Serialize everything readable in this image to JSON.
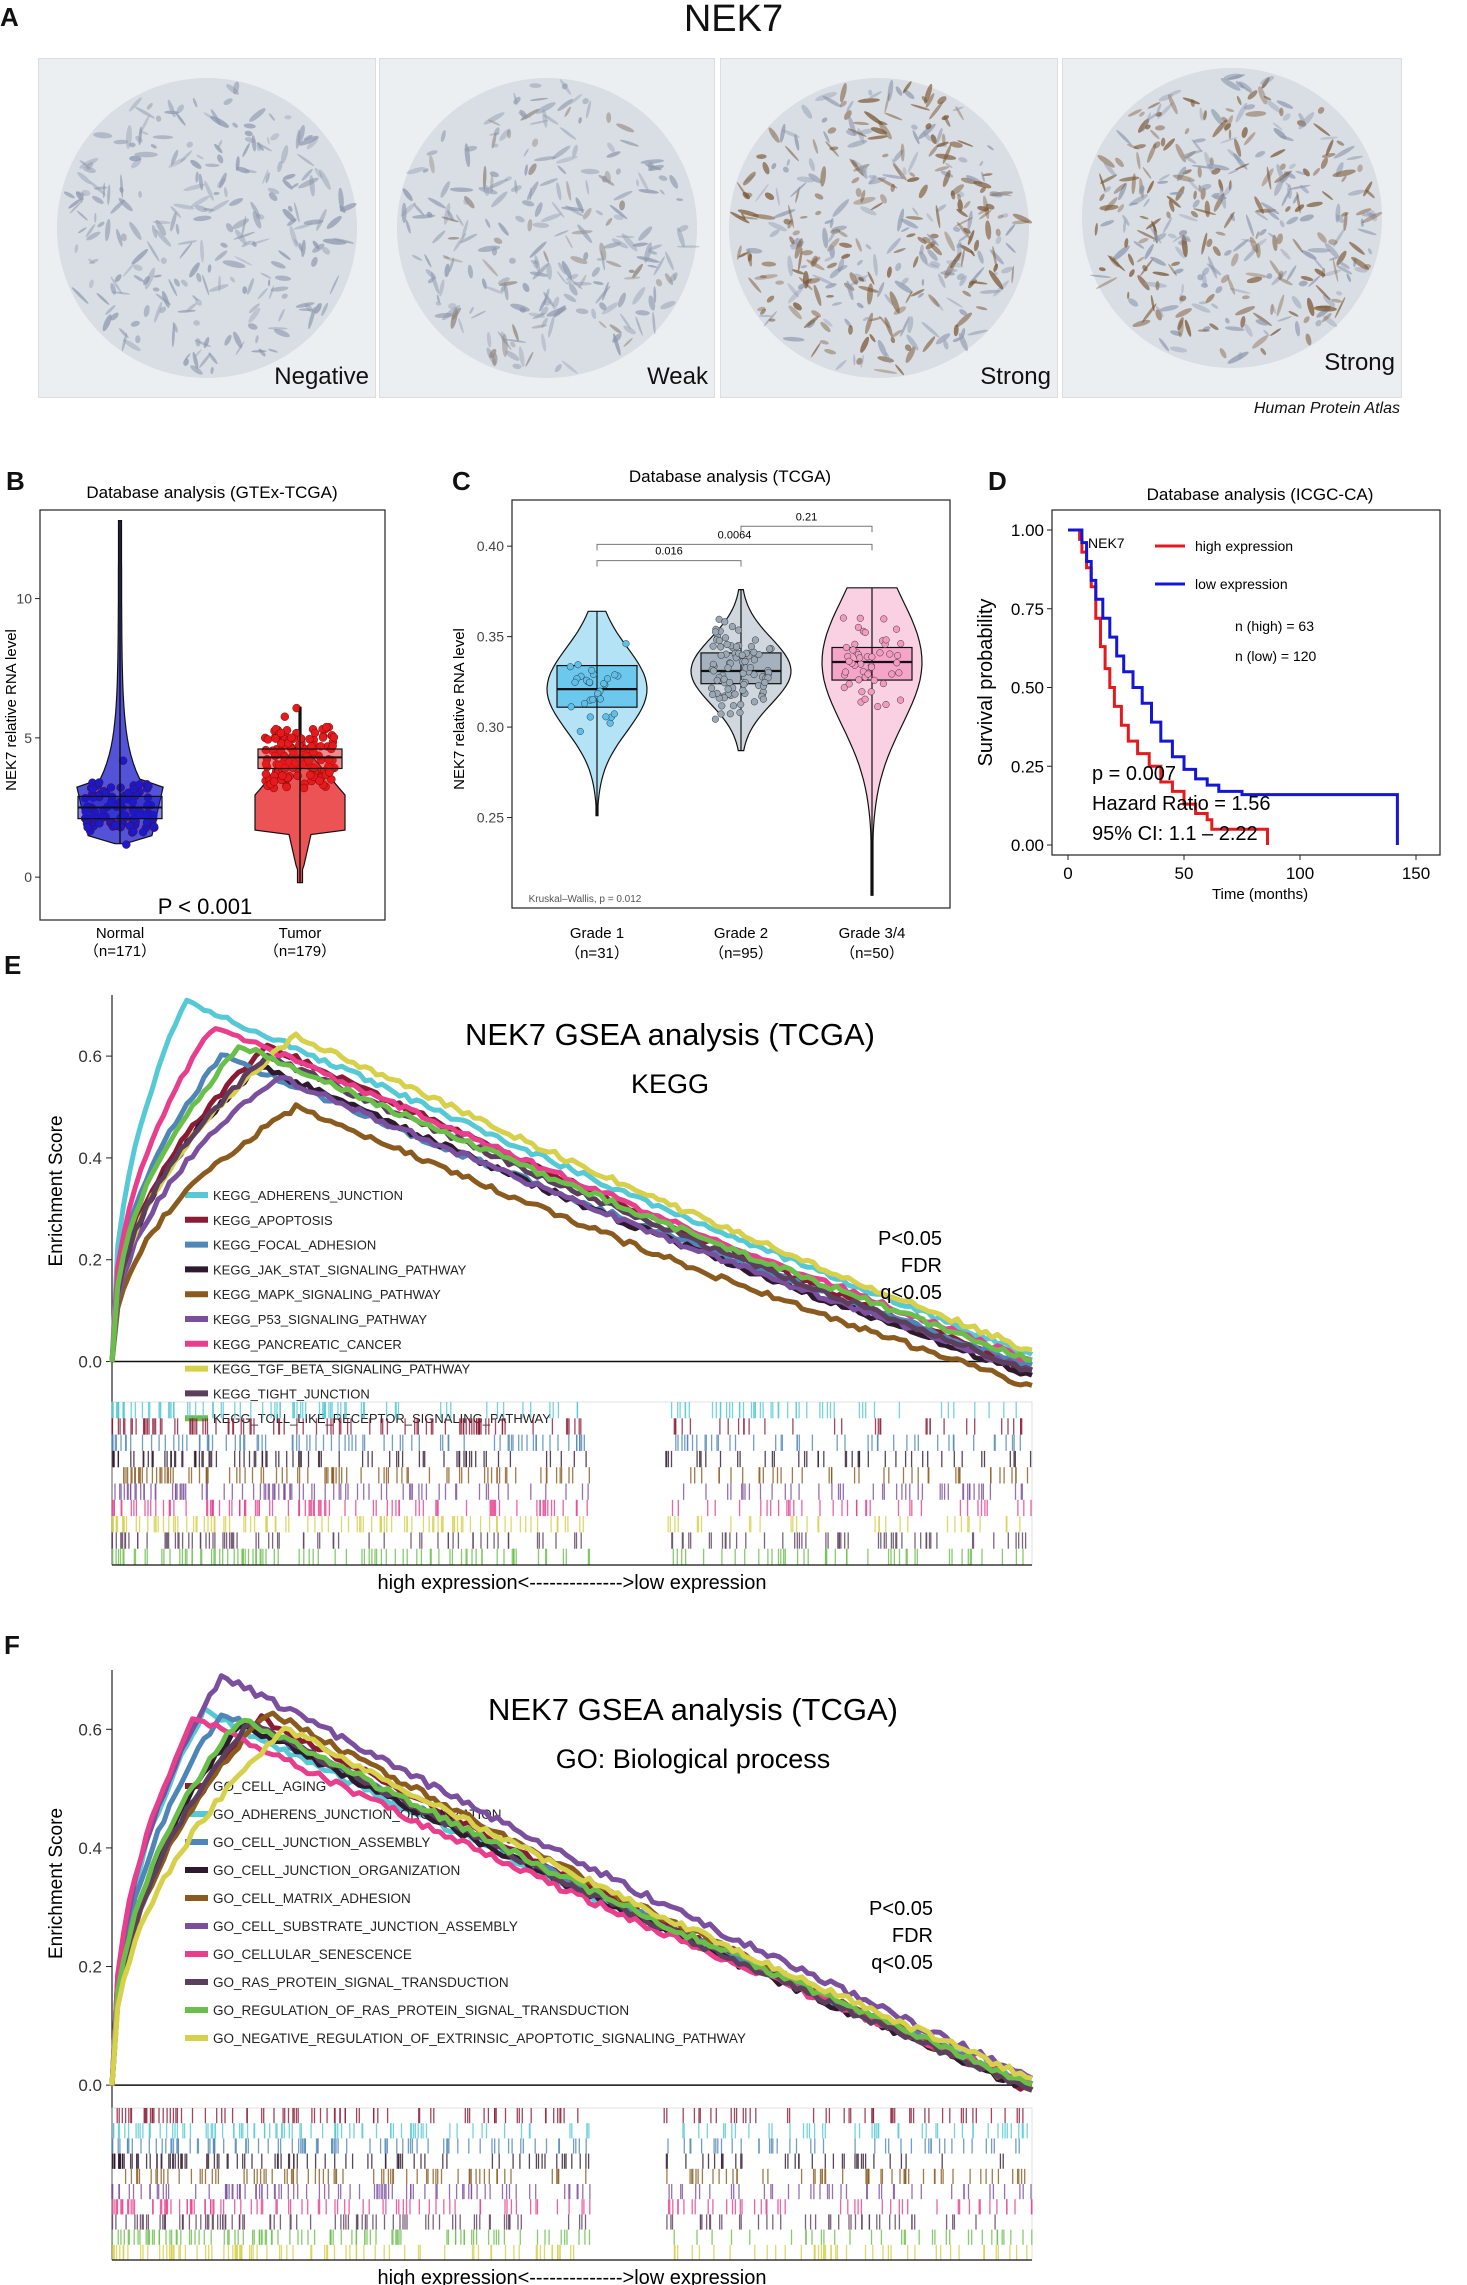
{
  "panels": {
    "A": "A",
    "B": "B",
    "C": "C",
    "D": "D",
    "E": "E",
    "F": "F"
  },
  "panelA": {
    "title": "NEK7",
    "credit": "Human Protein Atlas",
    "cores": [
      {
        "label": "Negative",
        "stain": "negative"
      },
      {
        "label": "Weak",
        "stain": "weak"
      },
      {
        "label": "Strong",
        "stain": "strong"
      },
      {
        "label": "Strong",
        "stain": "strong"
      }
    ]
  },
  "chart_data": [
    {
      "id": "B",
      "type": "violin",
      "title": "Database analysis (GTEx-TCGA)",
      "ylabel": "NEK7 relative RNA level",
      "ylim": [
        -1,
        13
      ],
      "yticks": [
        0,
        5,
        10
      ],
      "categories": [
        "Normal",
        "Tumor"
      ],
      "counts": [
        "（n=171）",
        "（n=179）"
      ],
      "colors": [
        "#1a1acd",
        "#e41a1c"
      ],
      "box": [
        {
          "q1": 2.1,
          "median": 2.5,
          "q3": 2.9
        },
        {
          "q1": 3.9,
          "median": 4.3,
          "q3": 4.6
        }
      ],
      "range": [
        {
          "min": 1.2,
          "max": 12.8
        },
        {
          "min": -0.2,
          "max": 6.1
        }
      ],
      "annotation": "P < 0.001"
    },
    {
      "id": "C",
      "type": "violin",
      "title": "Database analysis (TCGA)",
      "ylabel": "NEK7 relative RNA level",
      "ylim": [
        0.2,
        0.42
      ],
      "yticks": [
        0.25,
        0.3,
        0.35,
        0.4
      ],
      "ytick_labels": [
        "0.25",
        "0.30",
        "0.35",
        "0.40"
      ],
      "categories": [
        "Grade 1",
        "Grade 2",
        "Grade 3/4"
      ],
      "counts": [
        "（n=31）",
        "（n=95）",
        "（n=50）"
      ],
      "colors": [
        "#5bc0eb",
        "#9aa7b5",
        "#f49ac1"
      ],
      "box": [
        {
          "q1": 0.311,
          "median": 0.321,
          "q3": 0.334
        },
        {
          "q1": 0.324,
          "median": 0.331,
          "q3": 0.341
        },
        {
          "q1": 0.326,
          "median": 0.336,
          "q3": 0.344
        }
      ],
      "range": [
        {
          "min": 0.251,
          "max": 0.364
        },
        {
          "min": 0.287,
          "max": 0.376
        },
        {
          "min": 0.207,
          "max": 0.377
        }
      ],
      "comparisons": [
        {
          "pair": [
            1,
            2
          ],
          "p": "0.016"
        },
        {
          "pair": [
            1,
            3
          ],
          "p": "0.0064"
        },
        {
          "pair": [
            2,
            3
          ],
          "p": "0.21"
        }
      ],
      "test": "Kruskal–Wallis, p = 0.012"
    },
    {
      "id": "D",
      "type": "line",
      "title": "Database analysis (ICGC-CA)",
      "xlabel": "Time (months)",
      "ylabel": "Survival probability",
      "xlim": [
        0,
        150
      ],
      "ylim": [
        0,
        1
      ],
      "xticks": [
        0,
        50,
        100,
        150
      ],
      "yticks": [
        "0.00",
        "0.25",
        "0.50",
        "0.75",
        "1.00"
      ],
      "legend_title": "NEK7",
      "series": [
        {
          "name": "high expression",
          "color": "#e41a1c",
          "points": [
            [
              0,
              1
            ],
            [
              3,
              1
            ],
            [
              5,
              0.97
            ],
            [
              6,
              0.93
            ],
            [
              8,
              0.88
            ],
            [
              10,
              0.82
            ],
            [
              12,
              0.72
            ],
            [
              14,
              0.63
            ],
            [
              16,
              0.56
            ],
            [
              18,
              0.5
            ],
            [
              20,
              0.44
            ],
            [
              23,
              0.38
            ],
            [
              26,
              0.33
            ],
            [
              30,
              0.29
            ],
            [
              35,
              0.25
            ],
            [
              40,
              0.2
            ],
            [
              45,
              0.17
            ],
            [
              50,
              0.13
            ],
            [
              55,
              0.1
            ],
            [
              60,
              0.08
            ],
            [
              62,
              0.05
            ],
            [
              70,
              0.05
            ],
            [
              86,
              0.05
            ],
            [
              86,
              0.0
            ]
          ]
        },
        {
          "name": "low expression",
          "color": "#1515d6",
          "points": [
            [
              0,
              1
            ],
            [
              4,
              1
            ],
            [
              6,
              0.96
            ],
            [
              8,
              0.9
            ],
            [
              10,
              0.84
            ],
            [
              12,
              0.78
            ],
            [
              15,
              0.72
            ],
            [
              18,
              0.66
            ],
            [
              21,
              0.6
            ],
            [
              24,
              0.55
            ],
            [
              28,
              0.5
            ],
            [
              32,
              0.45
            ],
            [
              36,
              0.39
            ],
            [
              40,
              0.33
            ],
            [
              45,
              0.28
            ],
            [
              50,
              0.24
            ],
            [
              55,
              0.21
            ],
            [
              60,
              0.19
            ],
            [
              65,
              0.17
            ],
            [
              75,
              0.16
            ],
            [
              100,
              0.16
            ],
            [
              142,
              0.16
            ],
            [
              142,
              0.0
            ]
          ]
        }
      ],
      "n_high": "n (high) = 63",
      "n_low": "n (low) = 120",
      "p": "p = 0.007",
      "hr": "Hazard Ratio = 1.56",
      "ci": "95% CI: 1.1 – 2.22"
    },
    {
      "id": "E",
      "type": "line",
      "title": "NEK7 GSEA analysis (TCGA)",
      "subtitle": "KEGG",
      "ylabel": "Enrichment Score",
      "xlabel": "high expression<-------------->low expression",
      "ylim": [
        -0.05,
        0.72
      ],
      "yticks": [
        "0.0",
        "0.2",
        "0.4",
        "0.6"
      ],
      "stats": [
        "P<0.05",
        "FDR",
        "q<0.05"
      ],
      "series": [
        {
          "name": "KEGG_ADHERENS_JUNCTION",
          "color": "#55c9d6",
          "peak": 0.71,
          "peak_pos": 0.08,
          "end": 0.01
        },
        {
          "name": "KEGG_APOPTOSIS",
          "color": "#8b1a35",
          "peak": 0.62,
          "peak_pos": 0.17,
          "end": -0.02
        },
        {
          "name": "KEGG_FOCAL_ADHESION",
          "color": "#4e86b8",
          "peak": 0.6,
          "peak_pos": 0.12,
          "end": -0.01
        },
        {
          "name": "KEGG_JAK_STAT_SIGNALING_PATHWAY",
          "color": "#2e1a2e",
          "peak": 0.58,
          "peak_pos": 0.16,
          "end": -0.03
        },
        {
          "name": "KEGG_MAPK_SIGNALING_PATHWAY",
          "color": "#8a5a1e",
          "peak": 0.5,
          "peak_pos": 0.2,
          "end": -0.05
        },
        {
          "name": "KEGG_P53_SIGNALING_PATHWAY",
          "color": "#7a4f9e",
          "peak": 0.56,
          "peak_pos": 0.18,
          "end": -0.02
        },
        {
          "name": "KEGG_PANCREATIC_CANCER",
          "color": "#e83e8c",
          "peak": 0.66,
          "peak_pos": 0.11,
          "end": 0.0
        },
        {
          "name": "KEGG_TGF_BETA_SIGNALING_PATHWAY",
          "color": "#d6d04a",
          "peak": 0.64,
          "peak_pos": 0.2,
          "end": 0.02
        },
        {
          "name": "KEGG_TIGHT_JUNCTION",
          "color": "#5c3f5c",
          "peak": 0.6,
          "peak_pos": 0.17,
          "end": -0.02
        },
        {
          "name": "KEGG_TOLL_LIKE_RECEPTOR_SIGNALING_PATHWAY",
          "color": "#6abf4b",
          "peak": 0.62,
          "peak_pos": 0.14,
          "end": 0.0
        }
      ]
    },
    {
      "id": "F",
      "type": "line",
      "title": "NEK7 GSEA analysis (TCGA)",
      "subtitle": "GO: Biological process",
      "ylabel": "Enrichment Score",
      "xlabel": "high expression<-------------->low expression",
      "ylim": [
        -0.02,
        0.7
      ],
      "yticks": [
        "0.0",
        "0.2",
        "0.4",
        "0.6"
      ],
      "stats": [
        "P<0.05",
        "FDR",
        "q<0.05"
      ],
      "series": [
        {
          "name": "GO_CELL_AGING",
          "color": "#8b1a35",
          "peak": 0.62,
          "peak_pos": 0.16,
          "end": -0.01
        },
        {
          "name": "GO_ADHERENS_JUNCTION_ORGANIZATION",
          "color": "#55c9d6",
          "peak": 0.63,
          "peak_pos": 0.1,
          "end": 0.0
        },
        {
          "name": "GO_CELL_JUNCTION_ASSEMBLY",
          "color": "#4e86b8",
          "peak": 0.63,
          "peak_pos": 0.12,
          "end": 0.0
        },
        {
          "name": "GO_CELL_JUNCTION_ORGANIZATION",
          "color": "#2e1a2e",
          "peak": 0.61,
          "peak_pos": 0.14,
          "end": -0.01
        },
        {
          "name": "GO_CELL_MATRIX_ADHESION",
          "color": "#8a5a1e",
          "peak": 0.63,
          "peak_pos": 0.17,
          "end": -0.01
        },
        {
          "name": "GO_CELL_SUBSTRATE_JUNCTION_ASSEMBLY",
          "color": "#7a4f9e",
          "peak": 0.69,
          "peak_pos": 0.12,
          "end": 0.01
        },
        {
          "name": "GO_CELLULAR_SENESCENCE",
          "color": "#e83e8c",
          "peak": 0.62,
          "peak_pos": 0.09,
          "end": 0.0
        },
        {
          "name": "GO_RAS_PROTEIN_SIGNAL_TRANSDUCTION",
          "color": "#5c3f5c",
          "peak": 0.61,
          "peak_pos": 0.15,
          "end": -0.01
        },
        {
          "name": "GO_REGULATION_OF_RAS_PROTEIN_SIGNAL_TRANSDUCTION",
          "color": "#6abf4b",
          "peak": 0.62,
          "peak_pos": 0.14,
          "end": 0.0
        },
        {
          "name": "GO_NEGATIVE_REGULATION_OF_EXTRINSIC_APOPTOTIC_SIGNALING_PATHWAY",
          "color": "#d6d04a",
          "peak": 0.6,
          "peak_pos": 0.19,
          "end": 0.01
        }
      ]
    }
  ]
}
